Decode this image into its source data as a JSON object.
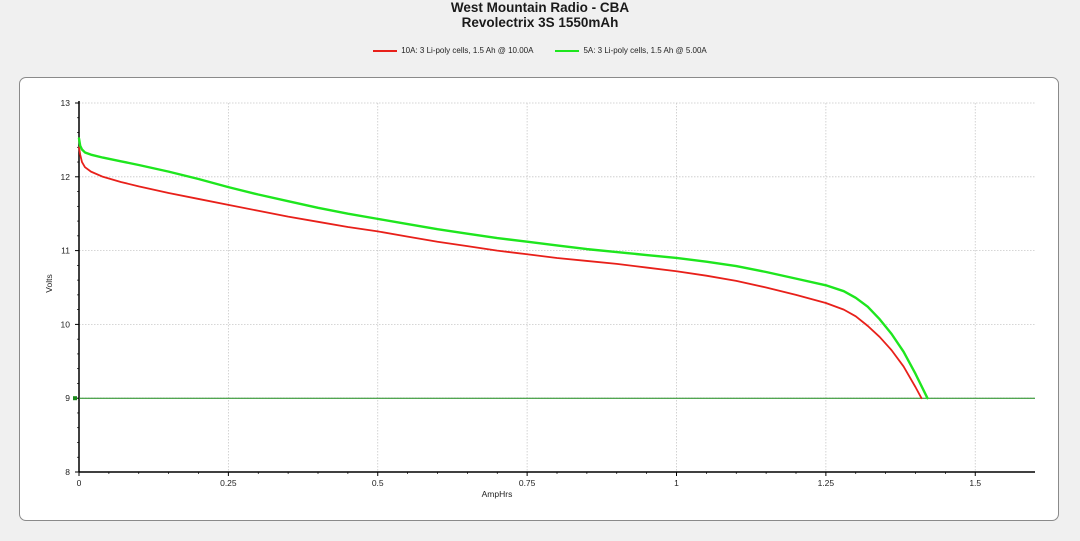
{
  "chart_data": {
    "type": "line",
    "title": "West Mountain Radio - CBA",
    "subtitle": "Revolectrix 3S 1550mAh",
    "xlabel": "AmpHrs",
    "ylabel": "Volts",
    "xlim": [
      0,
      1.6
    ],
    "ylim": [
      8,
      13
    ],
    "x_ticks": [
      0,
      0.25,
      0.5,
      0.75,
      1,
      1.25,
      1.5
    ],
    "x_tick_labels": [
      "0",
      "0.25",
      "0.5",
      "0.75",
      "1",
      "1.25",
      "1.5"
    ],
    "y_ticks": [
      8,
      9,
      10,
      11,
      12,
      13
    ],
    "y_tick_labels": [
      "8",
      "9",
      "10",
      "11",
      "12",
      "13"
    ],
    "grid": true,
    "legend_position": "top-center",
    "cutoff_line": {
      "y": 9,
      "color": "#1a8a1a"
    },
    "series": [
      {
        "name": "10A: 3 Li-poly cells, 1.5 Ah @ 10.00A",
        "color": "#e8201a",
        "x": [
          0,
          0.002,
          0.005,
          0.01,
          0.02,
          0.04,
          0.07,
          0.1,
          0.15,
          0.2,
          0.25,
          0.3,
          0.35,
          0.4,
          0.45,
          0.5,
          0.55,
          0.6,
          0.65,
          0.7,
          0.75,
          0.8,
          0.85,
          0.9,
          0.95,
          1.0,
          1.05,
          1.1,
          1.15,
          1.2,
          1.25,
          1.28,
          1.3,
          1.32,
          1.34,
          1.36,
          1.38,
          1.4,
          1.41
        ],
        "y": [
          12.4,
          12.3,
          12.2,
          12.13,
          12.07,
          12.0,
          11.93,
          11.87,
          11.78,
          11.7,
          11.62,
          11.54,
          11.46,
          11.39,
          11.32,
          11.26,
          11.19,
          11.12,
          11.06,
          11.0,
          10.95,
          10.9,
          10.86,
          10.82,
          10.77,
          10.72,
          10.66,
          10.59,
          10.5,
          10.4,
          10.29,
          10.2,
          10.11,
          9.98,
          9.83,
          9.65,
          9.43,
          9.15,
          9.0
        ]
      },
      {
        "name": "5A: 3 Li-poly cells, 1.5 Ah @ 5.00A",
        "color": "#1ee61e",
        "x": [
          0,
          0.002,
          0.005,
          0.01,
          0.02,
          0.04,
          0.07,
          0.1,
          0.15,
          0.2,
          0.25,
          0.3,
          0.35,
          0.4,
          0.45,
          0.5,
          0.55,
          0.6,
          0.65,
          0.7,
          0.75,
          0.8,
          0.85,
          0.9,
          0.95,
          1.0,
          1.05,
          1.1,
          1.15,
          1.2,
          1.25,
          1.28,
          1.3,
          1.32,
          1.34,
          1.36,
          1.38,
          1.4,
          1.42
        ],
        "y": [
          12.52,
          12.42,
          12.37,
          12.33,
          12.3,
          12.26,
          12.21,
          12.16,
          12.07,
          11.97,
          11.86,
          11.76,
          11.67,
          11.58,
          11.5,
          11.43,
          11.36,
          11.29,
          11.23,
          11.17,
          11.12,
          11.07,
          11.02,
          10.98,
          10.94,
          10.9,
          10.85,
          10.79,
          10.71,
          10.62,
          10.53,
          10.45,
          10.36,
          10.24,
          10.07,
          9.87,
          9.63,
          9.33,
          9.0
        ]
      }
    ]
  }
}
